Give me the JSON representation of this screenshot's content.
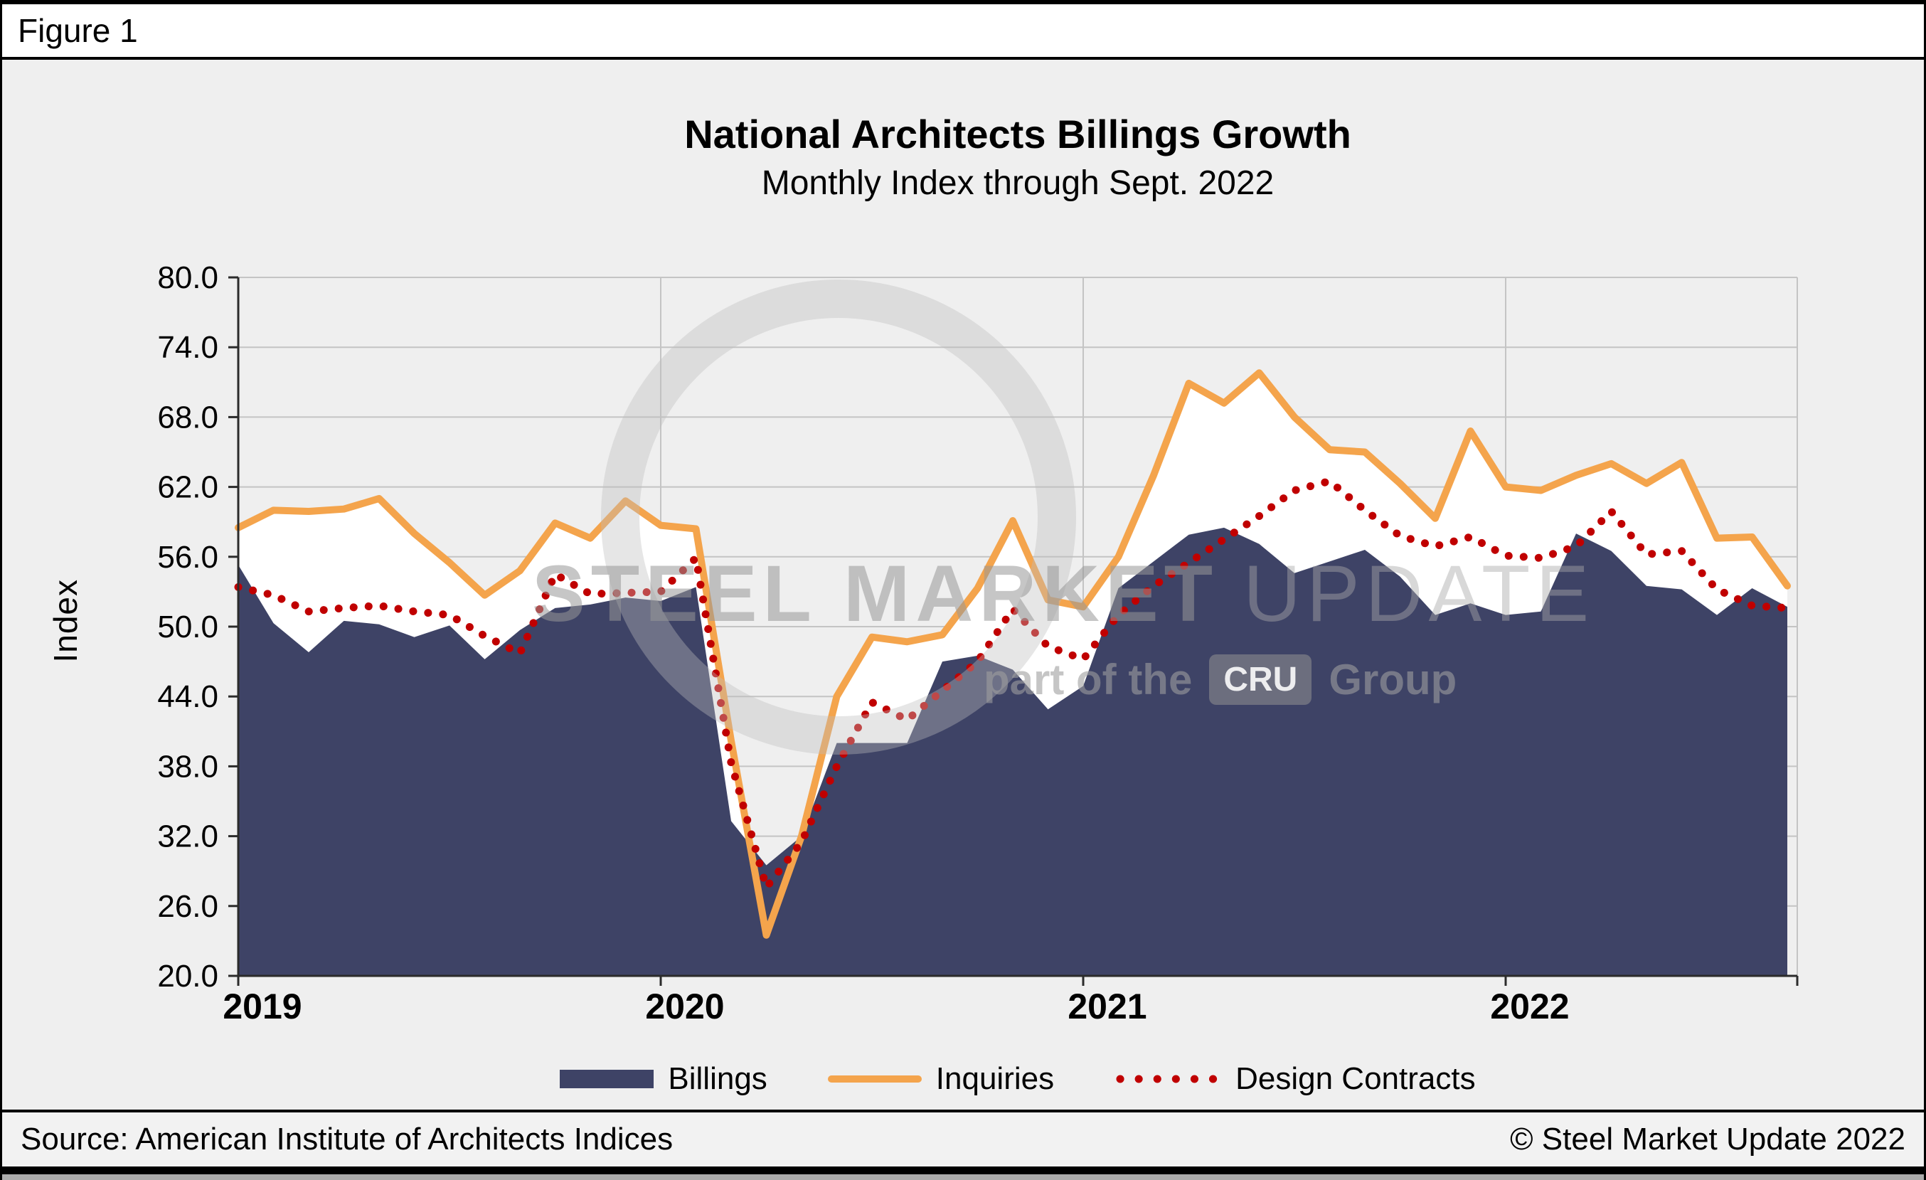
{
  "figure_label": "Figure 1",
  "title": "National Architects Billings Growth",
  "subtitle": "Monthly Index through Sept. 2022",
  "footer": {
    "source": "Source: American Institute of Architects Indices",
    "copyright": "© Steel Market Update 2022"
  },
  "watermark": {
    "brand_main": "STEEL MARKET",
    "brand_secondary": "UPDATE",
    "tagline_prefix": "part of the",
    "logo_text": "CRU",
    "tagline_suffix": "Group"
  },
  "legend": {
    "items": [
      {
        "label": "Billings",
        "swatch": "area"
      },
      {
        "label": "Inquiries",
        "swatch": "line"
      },
      {
        "label": "Design Contracts",
        "swatch": "dots"
      }
    ]
  },
  "colors": {
    "background": "#EFEFEF",
    "plot_background": "#EFEFEF",
    "gridline": "#C4C4C4",
    "axis": "#2B2B2B",
    "billings": "#3E4366",
    "inquiries": "#F4A44C",
    "design_contracts": "#C00000",
    "inquiries_fill": "#FFFFFF"
  },
  "chart_data": {
    "type": "area",
    "title": "National Architects Billings Growth",
    "subtitle": "Monthly Index through Sept. 2022",
    "ylabel": "Index",
    "ylim": [
      20,
      80
    ],
    "yticks": [
      20,
      26,
      32,
      38,
      44,
      50,
      56,
      62,
      68,
      74,
      80
    ],
    "ytick_format": "one_decimal",
    "grid": true,
    "legend_position": "bottom",
    "x_year_labels": [
      "2019",
      "2020",
      "2021",
      "2022"
    ],
    "months": [
      "Jan 2019",
      "Feb 2019",
      "Mar 2019",
      "Apr 2019",
      "May 2019",
      "Jun 2019",
      "Jul 2019",
      "Aug 2019",
      "Sep 2019",
      "Oct 2019",
      "Nov 2019",
      "Dec 2019",
      "Jan 2020",
      "Feb 2020",
      "Mar 2020",
      "Apr 2020",
      "May 2020",
      "Jun 2020",
      "Jul 2020",
      "Aug 2020",
      "Sep 2020",
      "Oct 2020",
      "Nov 2020",
      "Dec 2020",
      "Jan 2021",
      "Feb 2021",
      "Mar 2021",
      "Apr 2021",
      "May 2021",
      "Jun 2021",
      "Jul 2021",
      "Aug 2021",
      "Sep 2021",
      "Oct 2021",
      "Nov 2021",
      "Dec 2021",
      "Jan 2022",
      "Feb 2022",
      "Mar 2022",
      "Apr 2022",
      "May 2022",
      "Jun 2022",
      "Jul 2022",
      "Aug 2022",
      "Sep 2022"
    ],
    "series": [
      {
        "name": "Billings",
        "style": "area",
        "color": "#3E4366",
        "values": [
          55.3,
          50.3,
          47.8,
          50.5,
          50.2,
          49.1,
          50.1,
          47.2,
          49.7,
          51.6,
          51.9,
          52.5,
          52.2,
          53.4,
          33.3,
          29.5,
          32.0,
          40.0,
          40.0,
          40.0,
          47.0,
          47.5,
          46.3,
          42.9,
          44.9,
          53.3,
          55.6,
          57.9,
          58.5,
          57.1,
          54.6,
          55.6,
          56.6,
          54.3,
          51.0,
          52.0,
          51.0,
          51.3,
          58.0,
          56.5,
          53.5,
          53.2,
          51.0,
          53.3,
          51.7
        ]
      },
      {
        "name": "Inquiries",
        "style": "line",
        "color": "#F4A44C",
        "fill_below": "#FFFFFF",
        "values": [
          58.5,
          60.0,
          59.9,
          60.1,
          61.0,
          58.0,
          55.5,
          52.7,
          54.8,
          58.9,
          57.6,
          60.8,
          58.7,
          58.4,
          40.2,
          23.5,
          32.0,
          44.0,
          49.1,
          48.7,
          49.3,
          53.3,
          59.1,
          52.3,
          51.7,
          56.0,
          63.0,
          70.9,
          69.2,
          71.8,
          68.0,
          65.2,
          65.0,
          62.3,
          59.3,
          66.8,
          62.0,
          61.7,
          63.0,
          64.0,
          62.3,
          64.1,
          57.6,
          57.7,
          53.5
        ]
      },
      {
        "name": "Design Contracts",
        "style": "dotted",
        "color": "#C00000",
        "values": [
          53.4,
          52.7,
          51.3,
          51.6,
          51.8,
          51.3,
          51.0,
          49.2,
          47.7,
          54.5,
          52.8,
          52.9,
          53.0,
          55.9,
          38.3,
          27.6,
          31.5,
          38.0,
          43.5,
          42.0,
          44.5,
          47.0,
          51.5,
          48.3,
          47.2,
          51.0,
          53.5,
          55.5,
          57.5,
          59.5,
          61.7,
          62.5,
          60.0,
          57.8,
          56.9,
          57.7,
          56.1,
          55.9,
          56.9,
          59.9,
          56.2,
          56.5,
          53.2,
          51.8,
          51.6
        ]
      }
    ]
  }
}
